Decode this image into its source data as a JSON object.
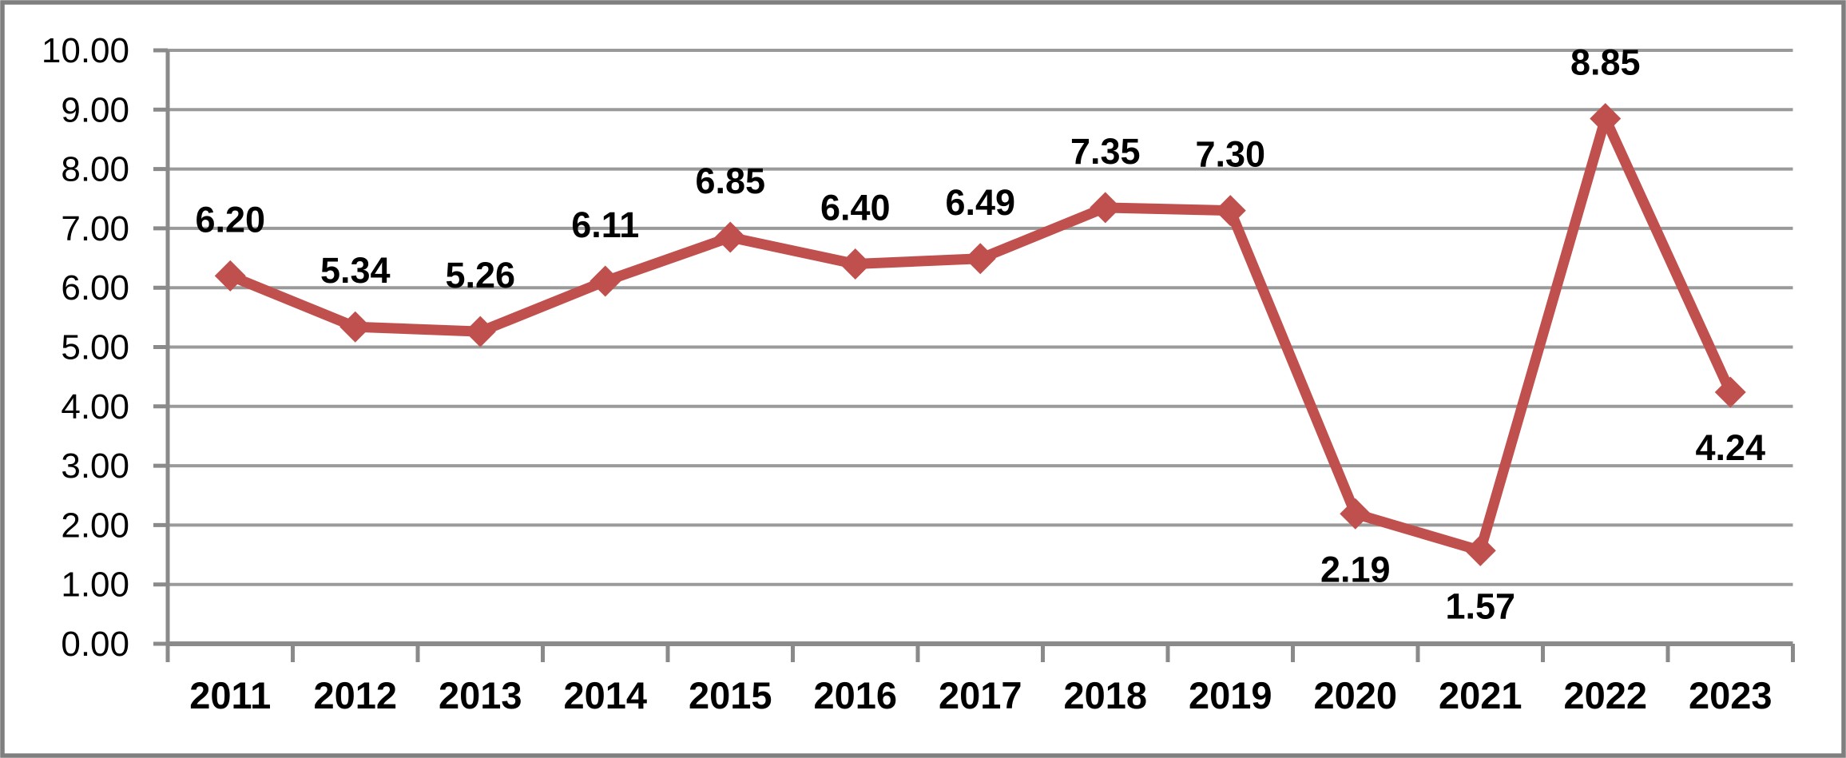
{
  "chart_data": {
    "type": "line",
    "title": "",
    "xlabel": "",
    "ylabel": "",
    "legend": "none",
    "grid": true,
    "categories": [
      "2011",
      "2012",
      "2013",
      "2014",
      "2015",
      "2016",
      "2017",
      "2018",
      "2019",
      "2020",
      "2021",
      "2022",
      "2023"
    ],
    "series": [
      {
        "name": "",
        "values": [
          6.2,
          5.34,
          5.26,
          6.11,
          6.85,
          6.4,
          6.49,
          7.35,
          7.3,
          2.19,
          1.57,
          8.85,
          4.24
        ],
        "point_labels": [
          "6.20",
          "5.34",
          "5.26",
          "6.11",
          "6.85",
          "6.40",
          "6.49",
          "7.35",
          "7.30",
          "2.19",
          "1.57",
          "8.85",
          "4.24"
        ],
        "label_positions": [
          "above",
          "above",
          "above",
          "above",
          "above",
          "above",
          "above",
          "above",
          "above",
          "below",
          "below",
          "above",
          "below"
        ],
        "marker": "diamond",
        "color": "#C0504D"
      }
    ],
    "y_axis": {
      "min": 0,
      "max": 10,
      "step": 1,
      "tick_labels": [
        "0.00",
        "1.00",
        "2.00",
        "3.00",
        "4.00",
        "5.00",
        "6.00",
        "7.00",
        "8.00",
        "9.00",
        "10.00"
      ]
    },
    "colors": {
      "series_line": "#C0504D",
      "gridline": "#9A9A9A",
      "axis_line": "#8A8A8A",
      "outer_border": "#7F7F7F",
      "label_text": "#000000",
      "background": "#FFFFFF"
    }
  }
}
